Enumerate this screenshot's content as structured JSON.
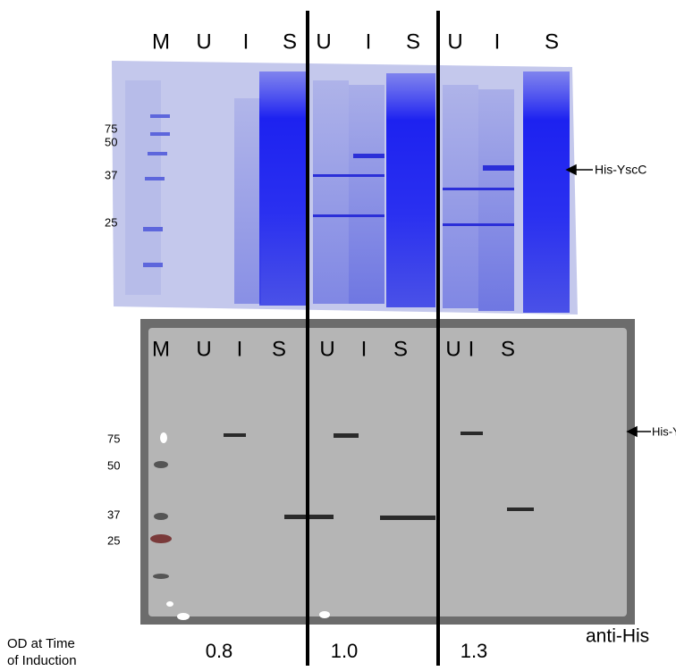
{
  "top_gel": {
    "lane_labels": [
      "M",
      "U",
      "I",
      "S",
      "U",
      "I",
      "S",
      "U",
      "I",
      "S"
    ],
    "markers": [
      "75",
      "50",
      "37",
      "25"
    ],
    "band_label": "His-YscC"
  },
  "bottom_gel": {
    "lane_labels": [
      "M",
      "U",
      "I",
      "S",
      "U",
      "I",
      "S",
      "U",
      "I",
      "S"
    ],
    "markers": [
      "75",
      "50",
      "37",
      "25"
    ],
    "band_label": "His-YscC",
    "antibody": "anti-His"
  },
  "footer": {
    "od_label": [
      "OD at Time",
      "of Induction"
    ],
    "od_values": [
      "0.8",
      "1.0",
      "1.3"
    ]
  }
}
